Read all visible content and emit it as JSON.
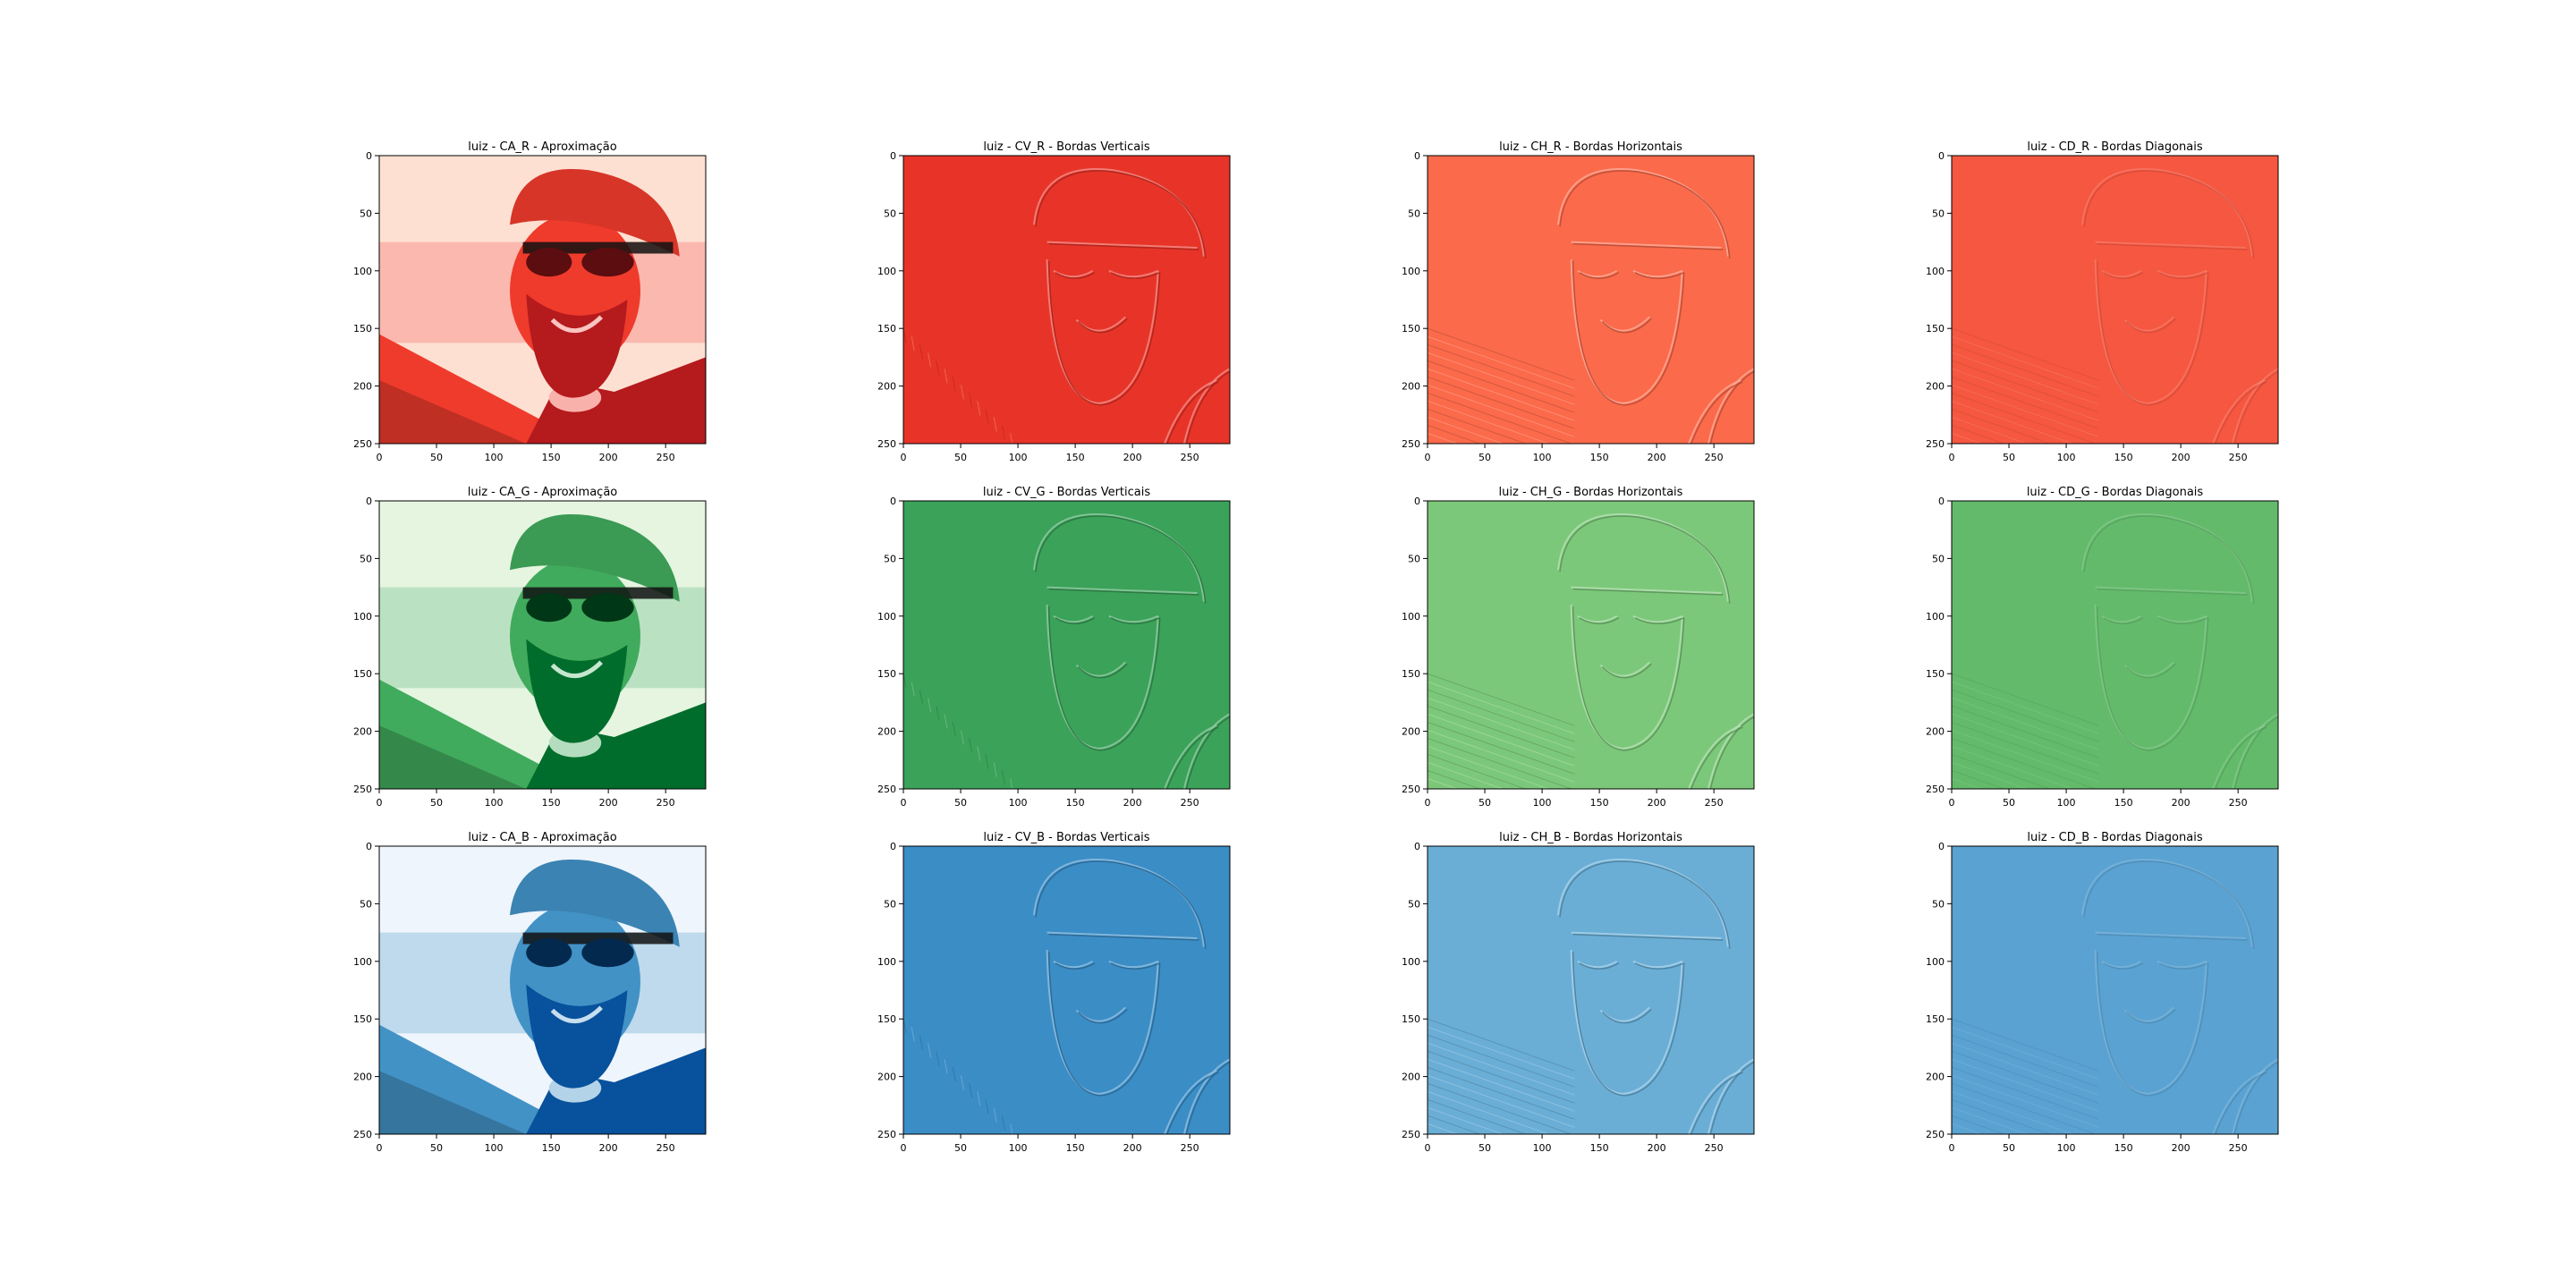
{
  "chart_data": {
    "type": "image-grid",
    "xlim": [
      0,
      285
    ],
    "ylim": [
      250,
      0
    ],
    "xticks": [
      0,
      50,
      100,
      150,
      200,
      250
    ],
    "yticks": [
      0,
      50,
      100,
      150,
      200,
      250
    ],
    "colors": {
      "R": "#ef3b2c",
      "G": "#41ab5d",
      "B": "#4292c6"
    },
    "rows": [
      {
        "channel": "R",
        "panels": [
          {
            "title": "luiz - CA_R - Aproximação",
            "kind": "approximation",
            "base": "#ef3b2c",
            "light": "#fee0d2",
            "dark": "#b51a1d"
          },
          {
            "title": "luiz - CV_R - Bordas Verticais",
            "kind": "vertical",
            "base": "#e83428"
          },
          {
            "title": "luiz - CH_R - Bordas Horizontais",
            "kind": "horizontal",
            "base": "#fb6a4a"
          },
          {
            "title": "luiz - CD_R - Bordas Diagonais",
            "kind": "diagonal",
            "base": "#f55740"
          }
        ]
      },
      {
        "channel": "G",
        "panels": [
          {
            "title": "luiz - CA_G - Aproximação",
            "kind": "approximation",
            "base": "#41ab5d",
            "light": "#e5f5e0",
            "dark": "#006d2c"
          },
          {
            "title": "luiz - CV_G - Bordas Verticais",
            "kind": "vertical",
            "base": "#3ba259"
          },
          {
            "title": "luiz - CH_G - Bordas Horizontais",
            "kind": "horizontal",
            "base": "#7cc87a"
          },
          {
            "title": "luiz - CD_G - Bordas Diagonais",
            "kind": "diagonal",
            "base": "#63ba6b"
          }
        ]
      },
      {
        "channel": "B",
        "panels": [
          {
            "title": "luiz - CA_B - Aproximação",
            "kind": "approximation",
            "base": "#4292c6",
            "light": "#eef5fc",
            "dark": "#08519c"
          },
          {
            "title": "luiz - CV_B - Bordas Verticais",
            "kind": "vertical",
            "base": "#3b8dc6"
          },
          {
            "title": "luiz - CH_B - Bordas Horizontais",
            "kind": "horizontal",
            "base": "#6aaed6"
          },
          {
            "title": "luiz - CD_B - Bordas Diagonais",
            "kind": "diagonal",
            "base": "#5aa2d1"
          }
        ]
      }
    ]
  }
}
